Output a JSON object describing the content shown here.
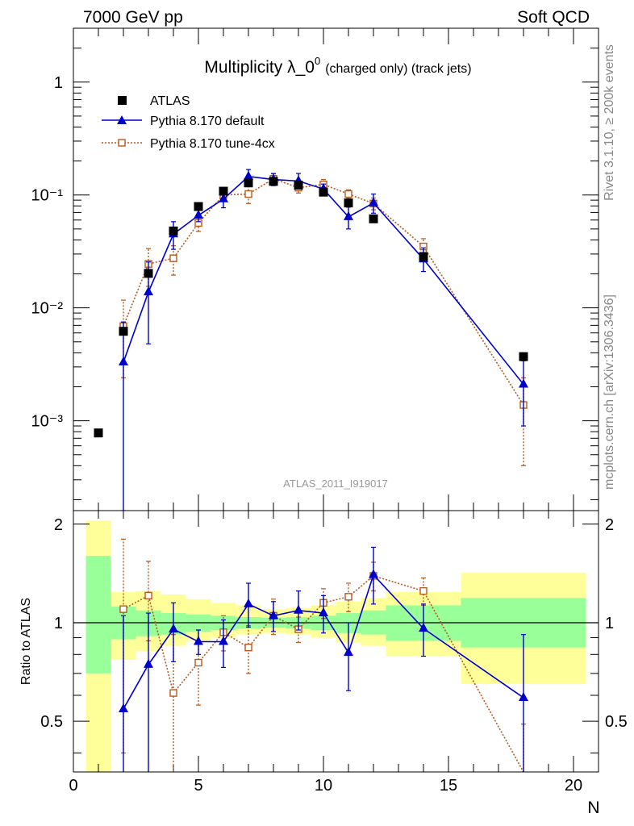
{
  "header": {
    "left": "7000 GeV pp",
    "right": "Soft QCD"
  },
  "side_labels": {
    "rivet": "Rivet 3.1.10, ≥ 200k events",
    "mcplots": "mcplots.cern.ch [arXiv:1306.3436]"
  },
  "colors": {
    "atlas": "#000000",
    "default": "#0000cc",
    "tune": "#b35a1f",
    "band_green": "#99ff99",
    "band_yellow": "#ffff99"
  },
  "chart_data": [
    {
      "type": "scatter",
      "title_main": "Multiplicity λ_0",
      "title_sup": "0",
      "title_suffix": "(charged only) (track jets)",
      "analysis_label": "ATLAS_2011_I919017",
      "ylabel": "",
      "xlabel": "",
      "yscale": "log",
      "ylim": [
        0.00016,
        3.0
      ],
      "xlim": [
        0,
        21
      ],
      "y_tick_labels": [
        "10⁻³",
        "10⁻²",
        "10⁻¹",
        "1"
      ],
      "legend_placement": "top-left",
      "series": [
        {
          "name": "ATLAS",
          "marker": "square",
          "x": [
            1,
            2,
            3,
            4,
            5,
            6,
            7,
            8,
            9,
            10,
            11,
            12,
            14,
            18
          ],
          "y": [
            0.00078,
            0.0062,
            0.0202,
            0.048,
            0.079,
            0.108,
            0.128,
            0.132,
            0.122,
            0.106,
            0.085,
            0.0615,
            0.0285,
            0.0037
          ]
        },
        {
          "name": "Pythia 8.170 default",
          "marker": "triangle",
          "x": [
            2,
            3,
            4,
            5,
            6,
            7,
            8,
            9,
            10,
            11,
            12,
            14,
            18
          ],
          "y": [
            0.0033,
            0.0138,
            0.045,
            0.066,
            0.092,
            0.146,
            0.137,
            0.133,
            0.113,
            0.064,
            0.085,
            0.027,
            0.0021
          ],
          "y_low": [
            0.00012,
            0.0048,
            0.033,
            0.058,
            0.077,
            0.126,
            0.121,
            0.117,
            0.101,
            0.05,
            0.069,
            0.021,
            0.0009
          ],
          "y_high": [
            0.0075,
            0.0255,
            0.058,
            0.074,
            0.108,
            0.168,
            0.155,
            0.155,
            0.125,
            0.078,
            0.102,
            0.034,
            0.0034
          ]
        },
        {
          "name": "Pythia 8.170 tune-4cx",
          "marker": "open-square",
          "x": [
            2,
            3,
            4,
            5,
            6,
            7,
            8,
            9,
            10,
            11,
            12,
            14,
            18
          ],
          "y": [
            0.0069,
            0.0245,
            0.0275,
            0.0565,
            0.1,
            0.102,
            0.139,
            0.116,
            0.124,
            0.102,
            0.084,
            0.035,
            0.00138
          ],
          "y_low": [
            0.0024,
            0.0155,
            0.0195,
            0.0475,
            0.091,
            0.084,
            0.124,
            0.104,
            0.111,
            0.093,
            0.074,
            0.03,
            0.0004
          ],
          "y_high": [
            0.0117,
            0.0335,
            0.0355,
            0.0655,
            0.109,
            0.12,
            0.154,
            0.128,
            0.137,
            0.111,
            0.094,
            0.041,
            0.0024
          ]
        }
      ]
    },
    {
      "type": "scatter",
      "ylabel": "Ratio to ATLAS",
      "xlabel": "N",
      "xlim": [
        0,
        21
      ],
      "ylim": [
        0.35,
        2.2
      ],
      "yscale": "log",
      "x_ticks": [
        0,
        5,
        10,
        15,
        20
      ],
      "y_ticks": [
        0.5,
        1,
        2
      ],
      "reference_line": 1,
      "bands": {
        "bins": [
          [
            0.5,
            1.5
          ],
          [
            1.5,
            2.5
          ],
          [
            2.5,
            3.5
          ],
          [
            3.5,
            4.5
          ],
          [
            4.5,
            5.5
          ],
          [
            5.5,
            6.5
          ],
          [
            6.5,
            7.5
          ],
          [
            7.5,
            8.5
          ],
          [
            8.5,
            9.5
          ],
          [
            9.5,
            10.5
          ],
          [
            10.5,
            11.5
          ],
          [
            11.5,
            12.5
          ],
          [
            12.5,
            15.5
          ],
          [
            15.5,
            20.5
          ]
        ],
        "green": [
          [
            0.7,
            1.6
          ],
          [
            0.89,
            1.12
          ],
          [
            0.91,
            1.09
          ],
          [
            0.92,
            1.07
          ],
          [
            0.94,
            1.06
          ],
          [
            0.95,
            1.05
          ],
          [
            0.96,
            1.04
          ],
          [
            0.965,
            1.035
          ],
          [
            0.96,
            1.04
          ],
          [
            0.95,
            1.05
          ],
          [
            0.93,
            1.07
          ],
          [
            0.92,
            1.09
          ],
          [
            0.88,
            1.13
          ],
          [
            0.84,
            1.19
          ]
        ],
        "yellow": [
          [
            0.2,
            2.05
          ],
          [
            0.77,
            1.24
          ],
          [
            0.82,
            1.25
          ],
          [
            0.85,
            1.22
          ],
          [
            0.88,
            1.18
          ],
          [
            0.9,
            1.15
          ],
          [
            0.92,
            1.13
          ],
          [
            0.93,
            1.1
          ],
          [
            0.92,
            1.11
          ],
          [
            0.9,
            1.13
          ],
          [
            0.87,
            1.16
          ],
          [
            0.85,
            1.19
          ],
          [
            0.79,
            1.24
          ],
          [
            0.65,
            1.42
          ]
        ]
      },
      "series": [
        {
          "name": "Pythia 8.170 default",
          "marker": "triangle",
          "x": [
            2,
            3,
            4,
            5,
            6,
            7,
            8,
            9,
            10,
            11,
            12,
            14,
            18
          ],
          "y": [
            0.545,
            0.745,
            0.955,
            0.875,
            0.875,
            1.14,
            1.05,
            1.09,
            1.07,
            0.81,
            1.4,
            0.96,
            0.59
          ],
          "y_low": [
            0.05,
            0.25,
            0.76,
            0.8,
            0.73,
            0.97,
            0.94,
            0.95,
            0.93,
            0.62,
            1.14,
            0.79,
            0.27
          ],
          "y_high": [
            1.05,
            1.07,
            1.15,
            0.95,
            1.02,
            1.32,
            1.16,
            1.25,
            1.21,
            1.0,
            1.7,
            1.14,
            0.92
          ]
        },
        {
          "name": "Pythia 8.170 tune-4cx",
          "marker": "open-square",
          "x": [
            2,
            3,
            4,
            5,
            6,
            7,
            8,
            9,
            10,
            11,
            12,
            14,
            18
          ],
          "y": [
            1.1,
            1.21,
            0.61,
            0.755,
            0.935,
            0.84,
            1.05,
            0.955,
            1.15,
            1.2,
            1.39,
            1.25,
            0.32
          ],
          "y_low": [
            0.4,
            0.88,
            0.3,
            0.56,
            0.82,
            0.7,
            0.92,
            0.87,
            1.03,
            1.08,
            1.25,
            1.13,
            0.15
          ],
          "y_high": [
            1.8,
            1.54,
            0.92,
            0.95,
            1.05,
            0.98,
            1.18,
            1.04,
            1.27,
            1.32,
            1.53,
            1.37,
            0.49
          ]
        }
      ]
    }
  ]
}
